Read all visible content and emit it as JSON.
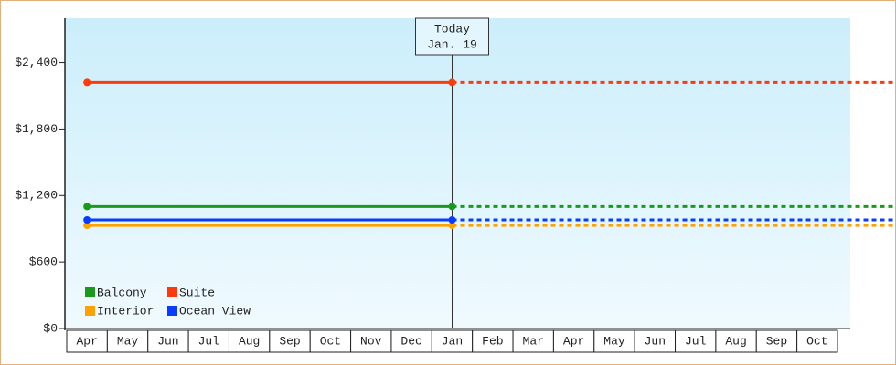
{
  "chart_data": {
    "type": "line",
    "annotation": {
      "title": "Today",
      "date": "Jan. 19"
    },
    "categories": [
      "Apr",
      "May",
      "Jun",
      "Jul",
      "Aug",
      "Sep",
      "Oct",
      "Nov",
      "Dec",
      "Jan",
      "Feb",
      "Mar",
      "Apr",
      "May",
      "Jun",
      "Jul",
      "Aug",
      "Sep",
      "Oct"
    ],
    "series": [
      {
        "name": "Balcony",
        "color": "#1a9a1a",
        "values": [
          1100,
          1100,
          1100,
          1100,
          1100,
          1100,
          1100,
          1100,
          1100,
          1100,
          null,
          null,
          null,
          null,
          null,
          null,
          null,
          null,
          null
        ]
      },
      {
        "name": "Suite",
        "color": "#ff3a0a",
        "values": [
          2220,
          2220,
          2220,
          2220,
          2220,
          2220,
          2220,
          2220,
          2220,
          2220,
          null,
          null,
          null,
          null,
          null,
          null,
          null,
          null,
          null
        ]
      },
      {
        "name": "Interior",
        "color": "#ffa200",
        "values": [
          930,
          930,
          930,
          930,
          930,
          930,
          930,
          930,
          930,
          930,
          null,
          null,
          null,
          null,
          null,
          null,
          null,
          null,
          null
        ]
      },
      {
        "name": "Ocean View",
        "color": "#0a3cff",
        "values": [
          980,
          980,
          980,
          980,
          980,
          980,
          980,
          980,
          980,
          980,
          null,
          null,
          null,
          null,
          null,
          null,
          null,
          null,
          null
        ]
      }
    ],
    "ylim": [
      0,
      2800
    ],
    "yticks": [
      {
        "value": 0,
        "label": "$0"
      },
      {
        "value": 600,
        "label": "$600"
      },
      {
        "value": 1200,
        "label": "$1,200"
      },
      {
        "value": 1800,
        "label": "$1,800"
      },
      {
        "value": 2400,
        "label": "$2,400"
      }
    ]
  }
}
